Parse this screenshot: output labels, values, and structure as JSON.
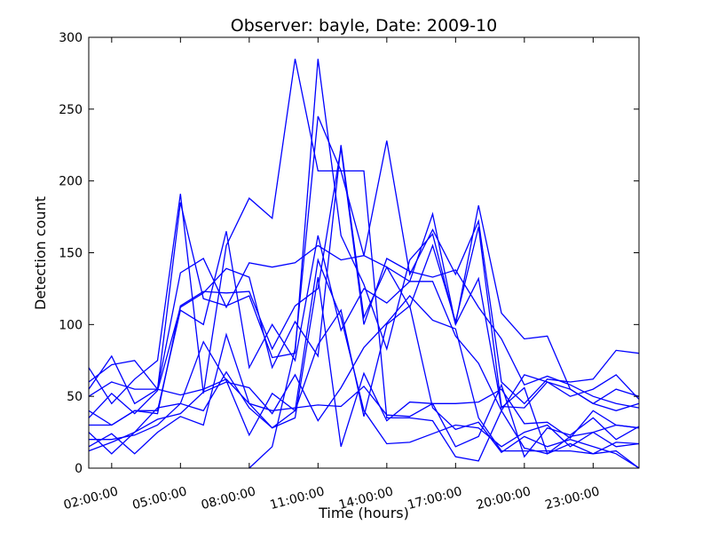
{
  "chart_data": {
    "type": "line",
    "title": "Observer: bayle, Date: 2009-10",
    "xlabel": "Time (hours)",
    "ylabel": "Detection count",
    "xlim": [
      1,
      25
    ],
    "ylim": [
      0,
      300
    ],
    "x_ticks": [
      {
        "value": 2,
        "label": "02:00:00"
      },
      {
        "value": 5,
        "label": "05:00:00"
      },
      {
        "value": 8,
        "label": "08:00:00"
      },
      {
        "value": 11,
        "label": "11:00:00"
      },
      {
        "value": 14,
        "label": "14:00:00"
      },
      {
        "value": 17,
        "label": "17:00:00"
      },
      {
        "value": 20,
        "label": "20:00:00"
      },
      {
        "value": 23,
        "label": "23:00:00"
      }
    ],
    "y_ticks": [
      0,
      50,
      100,
      150,
      200,
      250,
      300
    ],
    "x_tick_rotation": -15,
    "grid": false,
    "line_color": "#0000ff",
    "series": [
      {
        "x": [
          8,
          9,
          10,
          11,
          12,
          13,
          14,
          15,
          16,
          17,
          18,
          19,
          20,
          21,
          22,
          23,
          24,
          25
        ],
        "y": [
          0,
          15,
          83,
          245,
          207,
          207,
          35,
          35,
          33,
          8,
          5,
          40,
          14,
          10,
          17,
          10,
          18,
          17
        ]
      },
      {
        "x": [
          1,
          2,
          3,
          4,
          5,
          6,
          7,
          8,
          9,
          10,
          11,
          12,
          13,
          14,
          15,
          16,
          17,
          18,
          19,
          20,
          21,
          22,
          23,
          24,
          25
        ],
        "y": [
          55,
          78,
          45,
          55,
          185,
          118,
          113,
          120,
          77,
          80,
          285,
          162,
          128,
          83,
          145,
          163,
          100,
          132,
          42,
          56,
          10,
          22,
          25,
          30,
          28
        ]
      },
      {
        "x": [
          1,
          2,
          3,
          4,
          5,
          6,
          7,
          8,
          9,
          10,
          11,
          12,
          13,
          14,
          15,
          16,
          17,
          18,
          19,
          20,
          21,
          22,
          23,
          24,
          25
        ],
        "y": [
          70,
          45,
          62,
          75,
          191,
          52,
          155,
          188,
          174,
          285,
          207,
          207,
          148,
          228,
          135,
          166,
          135,
          172,
          60,
          45,
          62,
          60,
          62,
          82,
          80
        ]
      },
      {
        "x": [
          1,
          2,
          3,
          4,
          5,
          6,
          7,
          8,
          9,
          10,
          11,
          12,
          13,
          14,
          15,
          16,
          17,
          18,
          19,
          20,
          21,
          22,
          23,
          24,
          25
        ],
        "y": [
          60,
          72,
          75,
          55,
          136,
          146,
          112,
          143,
          140,
          143,
          155,
          145,
          148,
          140,
          130,
          177,
          100,
          183,
          108,
          90,
          92,
          55,
          45,
          55,
          50
        ]
      },
      {
        "x": [
          1,
          2,
          3,
          4,
          5,
          6,
          7,
          8,
          9,
          10,
          11,
          12,
          13,
          14,
          15,
          16,
          17,
          18,
          19,
          20,
          21,
          22,
          23,
          24,
          25
        ],
        "y": [
          35,
          52,
          38,
          54,
          112,
          122,
          139,
          133,
          70,
          102,
          78,
          225,
          105,
          140,
          112,
          155,
          102,
          168,
          43,
          42,
          60,
          50,
          55,
          65,
          48
        ]
      },
      {
        "x": [
          1,
          2,
          3,
          4,
          5,
          6,
          7,
          8,
          9,
          10,
          11,
          12,
          13,
          14,
          15,
          16,
          17,
          18,
          19,
          20,
          21,
          22,
          23,
          24,
          25
        ],
        "y": [
          40,
          30,
          40,
          40,
          110,
          100,
          165,
          70,
          100,
          75,
          162,
          96,
          125,
          115,
          130,
          130,
          92,
          73,
          40,
          65,
          60,
          55,
          45,
          40,
          45
        ]
      },
      {
        "x": [
          1,
          2,
          3,
          4,
          5,
          6,
          7,
          8,
          9,
          10,
          11,
          12,
          13,
          14,
          15,
          16,
          17,
          18,
          19,
          20,
          21,
          22,
          23,
          24,
          25
        ],
        "y": [
          30,
          30,
          40,
          38,
          113,
          123,
          122,
          123,
          83,
          113,
          125,
          223,
          100,
          146,
          137,
          133,
          138,
          112,
          90,
          58,
          64,
          58,
          50,
          45,
          42
        ]
      },
      {
        "x": [
          1,
          2,
          3,
          4,
          5,
          6,
          7,
          8,
          9,
          10,
          11,
          12,
          13,
          14,
          15,
          16,
          17,
          18,
          19,
          20,
          21,
          22,
          23,
          24,
          25
        ],
        "y": [
          25,
          10,
          25,
          42,
          45,
          88,
          61,
          23,
          52,
          40,
          86,
          110,
          36,
          100,
          113,
          42,
          27,
          32,
          11,
          22,
          15,
          20,
          15,
          10,
          0
        ]
      },
      {
        "x": [
          1,
          2,
          3,
          4,
          5,
          6,
          7,
          8,
          9,
          10,
          11,
          12,
          13,
          14,
          15,
          16,
          17,
          18,
          19,
          20,
          21,
          22,
          23,
          24,
          25
        ],
        "y": [
          12,
          18,
          25,
          34,
          38,
          53,
          60,
          56,
          38,
          65,
          33,
          56,
          84,
          101,
          120,
          103,
          97,
          35,
          12,
          12,
          12,
          12,
          10,
          12,
          0
        ]
      },
      {
        "x": [
          1,
          2,
          3,
          4,
          5,
          6,
          7,
          8,
          9,
          10,
          11,
          12,
          13,
          14,
          15,
          16,
          17,
          18,
          19,
          20,
          21,
          22,
          23,
          24,
          25
        ],
        "y": [
          15,
          24,
          10,
          25,
          36,
          30,
          93,
          45,
          28,
          35,
          133,
          15,
          66,
          33,
          46,
          45,
          15,
          22,
          58,
          8,
          28,
          23,
          35,
          20,
          29
        ]
      },
      {
        "x": [
          1,
          2,
          3,
          4,
          5,
          6,
          7,
          8,
          9,
          10,
          11,
          12,
          13,
          14,
          15,
          16,
          17,
          18,
          19,
          20,
          21,
          22,
          23,
          24,
          25
        ],
        "y": [
          20,
          20,
          23,
          30,
          45,
          40,
          67,
          42,
          28,
          40,
          145,
          105,
          40,
          17,
          18,
          24,
          30,
          28,
          15,
          25,
          30,
          15,
          25,
          15,
          17
        ]
      },
      {
        "x": [
          1,
          2,
          3,
          4,
          5,
          6,
          7,
          8,
          9,
          10,
          11,
          12,
          13,
          14,
          15,
          16,
          17,
          18,
          19,
          20,
          21,
          22,
          23,
          24,
          25
        ],
        "y": [
          50,
          60,
          55,
          55,
          51,
          55,
          62,
          45,
          40,
          42,
          44,
          43,
          57,
          37,
          36,
          45,
          45,
          46,
          55,
          31,
          32,
          21,
          40,
          30,
          28
        ]
      }
    ]
  }
}
